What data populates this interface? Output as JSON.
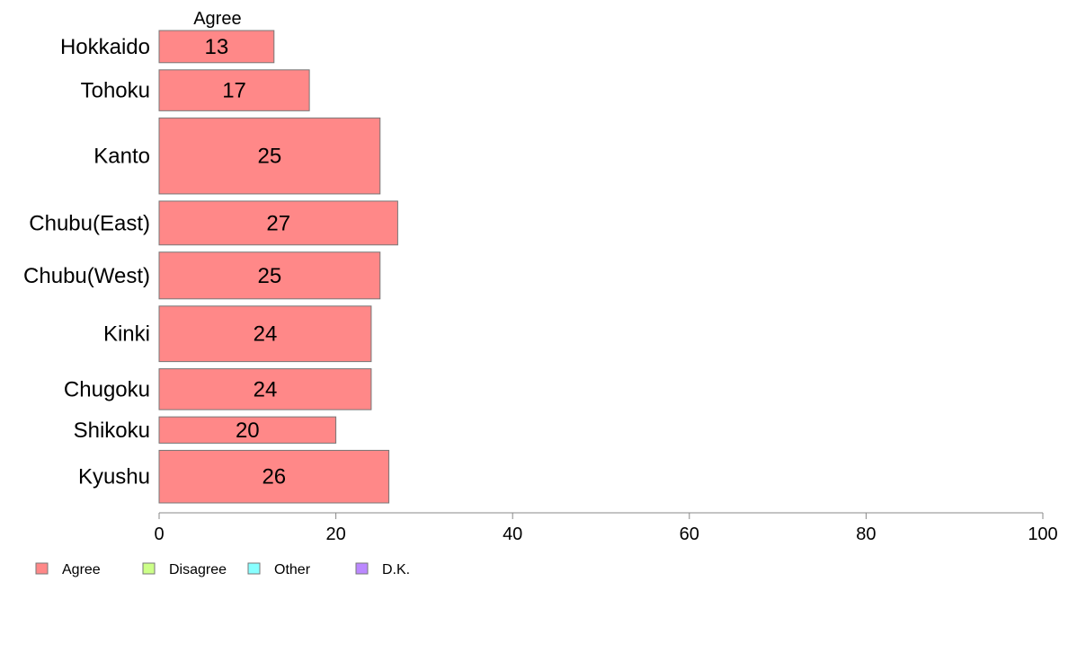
{
  "chart_data": {
    "type": "bar",
    "orientation": "horizontal",
    "stacked": true,
    "categories": [
      "Hokkaido",
      "Tohoku",
      "Kanto",
      "Chubu(East)",
      "Chubu(West)",
      "Kinki",
      "Chugoku",
      "Shikoku",
      "Kyushu"
    ],
    "relative_bar_widths": [
      0.55,
      0.7,
      1.3,
      0.75,
      0.8,
      0.95,
      0.7,
      0.45,
      0.9
    ],
    "series": [
      {
        "name": "Agree",
        "values": [
          13,
          17,
          25,
          27,
          25,
          24,
          24,
          20,
          26
        ],
        "color": "#ff8888"
      }
    ],
    "series_heading": "Agree",
    "legend": [
      {
        "label": "Agree",
        "color": "#ff8888"
      },
      {
        "label": "Disagree",
        "color": "#ccff88"
      },
      {
        "label": "Other",
        "color": "#88ffff"
      },
      {
        "label": "D.K.",
        "color": "#bb88ff"
      }
    ],
    "legend_position": "bottom-left",
    "xlim": [
      0,
      100
    ],
    "xticks": [
      0,
      20,
      40,
      60,
      80,
      100
    ],
    "grid": false,
    "data_labels": true
  },
  "colors": {
    "bar_stroke": "#777777",
    "axis": "#888888"
  }
}
